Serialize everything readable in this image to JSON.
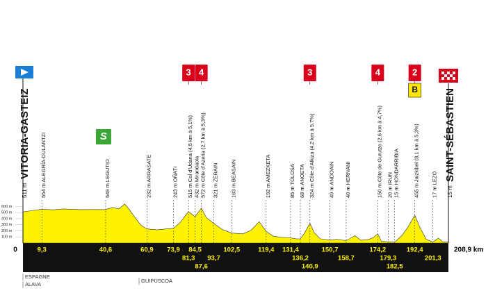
{
  "chart_data": {
    "type": "area",
    "color": "#fff200",
    "xlim": [
      0,
      208.9
    ],
    "ylim": [
      0,
      650
    ],
    "yticks": [
      {
        "value": 100,
        "label": "100 m"
      },
      {
        "value": 200,
        "label": "200 m"
      },
      {
        "value": 300,
        "label": "300 m"
      },
      {
        "value": 400,
        "label": "400 m"
      },
      {
        "value": 500,
        "label": "500 m"
      },
      {
        "value": 600,
        "label": "600 m"
      }
    ],
    "x": [
      0,
      4,
      9.3,
      15,
      20,
      28,
      35,
      40.6,
      44,
      47,
      50,
      52,
      55,
      58,
      60.9,
      66,
      70,
      73.9,
      77,
      81.3,
      84.5,
      86,
      87.6,
      90,
      93.7,
      98,
      102.5,
      108,
      112,
      116,
      119.4,
      123,
      127,
      131.4,
      134,
      136.2,
      138,
      140.9,
      143,
      146,
      150.7,
      154,
      158.7,
      163,
      166,
      170,
      172,
      174.2,
      176,
      179.3,
      182.5,
      186,
      189,
      192.4,
      195,
      198,
      201.3,
      204,
      206,
      208.9
    ],
    "values": [
      511,
      530,
      554,
      545,
      560,
      548,
      550,
      549,
      585,
      560,
      640,
      560,
      420,
      290,
      232,
      215,
      230,
      243,
      330,
      515,
      432,
      500,
      572,
      420,
      321,
      220,
      163,
      150,
      210,
      350,
      192,
      110,
      95,
      85,
      70,
      68,
      150,
      324,
      170,
      70,
      49,
      60,
      40,
      120,
      45,
      60,
      90,
      150,
      30,
      20,
      15,
      120,
      260,
      455,
      250,
      60,
      17,
      80,
      20,
      15
    ],
    "start": {
      "alt": "511 m",
      "name": "VITORIA-GASTEIZ",
      "km": "0"
    },
    "finish": {
      "alt": "15 m",
      "name": "SAINT-SÉBASTIEN",
      "km": {
        "value": 208.9,
        "label": "208,9 km"
      }
    },
    "waypoints": [
      {
        "km": {
          "value": 9.3,
          "label": "9,3"
        },
        "label": "554 m ALEGRÍA-DULANTZI"
      },
      {
        "km": {
          "value": 40.6,
          "label": "40,6"
        },
        "label": "549 m LEGUTIO",
        "sprint": "S"
      },
      {
        "km": {
          "value": 60.9,
          "label": "60,9"
        },
        "label": "232 m ARRASATE"
      },
      {
        "km": {
          "value": 73.9,
          "label": "73,9"
        },
        "label": "243 m OÑATI"
      },
      {
        "km": {
          "value": 81.3,
          "label": "81,3"
        },
        "label": "515 m Col d'Udana (4,5 km à 5,1%)",
        "badge": "3"
      },
      {
        "km": {
          "value": 84.5,
          "label": "84,5"
        },
        "label": "432 m Mirandaola"
      },
      {
        "km": {
          "value": 87.6,
          "label": "87,6"
        },
        "label": "572 m Côte d'Azeria (2,7 km à 5,3%)",
        "badge": "4"
      },
      {
        "km": {
          "value": 93.7,
          "label": "93,7"
        },
        "label": "321 m ZERAIN"
      },
      {
        "km": {
          "value": 102.5,
          "label": "102,5"
        },
        "label": "163 m BEASAIN"
      },
      {
        "km": {
          "value": 119.4,
          "label": "119,4"
        },
        "label": "192 m AMEZKETA"
      },
      {
        "km": {
          "value": 131.4,
          "label": "131,4"
        },
        "label": "85 m TOLOSA"
      },
      {
        "km": {
          "value": 136.2,
          "label": "136,2"
        },
        "label": "68 m ANOETA"
      },
      {
        "km": {
          "value": 140.9,
          "label": "140,9"
        },
        "label": "324 m Côte d'Alkiza (4,2 km à 5,7%)",
        "badge": "3"
      },
      {
        "km": {
          "value": 150.7,
          "label": "150,7"
        },
        "label": "49 m ANDOAIN"
      },
      {
        "km": {
          "value": 158.7,
          "label": "158,7"
        },
        "label": "40 m HERNANI"
      },
      {
        "km": {
          "value": 174.2,
          "label": "174,2"
        },
        "label": "150 m Côte de Gurutze (2,6 km à 4,7%)",
        "badge": "4"
      },
      {
        "km": {
          "value": 179.3,
          "label": "179,3"
        },
        "label": "20 m IRUN"
      },
      {
        "km": {
          "value": 182.5,
          "label": "182,5"
        },
        "label": "15 m HONDARRIBIA"
      },
      {
        "km": {
          "value": 192.4,
          "label": "192,4"
        },
        "label": "455 m Jaizkibel (8,1 km à 5,3%)",
        "badge": "2",
        "bonus": "B"
      },
      {
        "km": {
          "value": 201.3,
          "label": "201,3"
        },
        "label": "17 m LEZO"
      }
    ],
    "regions": [
      "ESPAGNE",
      "ALAVA",
      "GUIPUSCOA"
    ]
  }
}
